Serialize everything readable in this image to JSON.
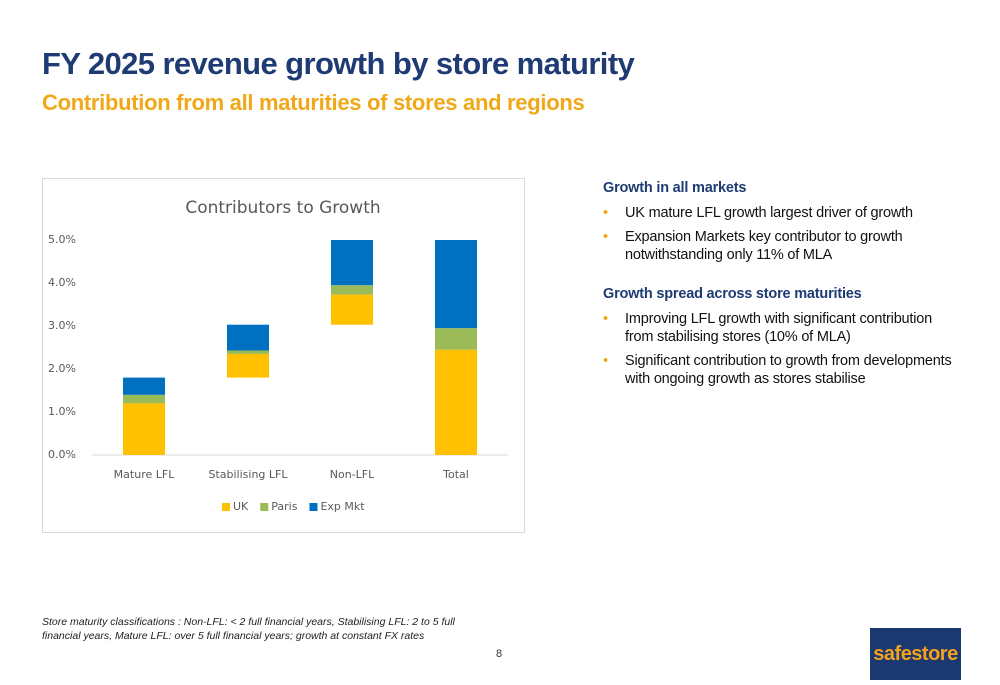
{
  "header": {
    "title": "FY 2025 revenue growth by store maturity",
    "subtitle": "Contribution from all maturities of stores and regions"
  },
  "chart_data": {
    "type": "waterfall",
    "title": "Contributors to Growth",
    "categories": [
      "Mature LFL",
      "Stabilising LFL",
      "Non-LFL",
      "Total"
    ],
    "series": [
      {
        "name": "UK",
        "color": "#ffc000",
        "values": [
          1.2,
          0.55,
          0.7,
          2.45
        ]
      },
      {
        "name": "Paris",
        "color": "#9bbb59",
        "values": [
          0.2,
          0.08,
          0.22,
          0.5
        ]
      },
      {
        "name": "Exp Mkt",
        "color": "#0070c0",
        "values": [
          0.4,
          0.6,
          1.05,
          2.05
        ]
      }
    ],
    "ylim": [
      0,
      5
    ],
    "yticks": [
      {
        "value": 0,
        "label": "0.0%"
      },
      {
        "value": 1,
        "label": "1.0%"
      },
      {
        "value": 2,
        "label": "2.0%"
      },
      {
        "value": 3,
        "label": "3.0%"
      },
      {
        "value": 4,
        "label": "4.0%"
      },
      {
        "value": 5,
        "label": "5.0%"
      }
    ],
    "grid": false,
    "legend": "bottom"
  },
  "bullets": {
    "sections": [
      {
        "heading": "Growth in all markets",
        "items": [
          "UK mature LFL growth largest driver of growth",
          "Expansion Markets key contributor to growth notwithstanding only 11% of MLA"
        ]
      },
      {
        "heading": "Growth spread across store maturities",
        "items": [
          "Improving LFL growth with significant contribution from stabilising stores (10% of MLA)",
          "Significant contribution to growth from developments with ongoing growth as stores stabilise"
        ]
      }
    ]
  },
  "footnote": "Store maturity classifications : Non-LFL: < 2 full financial years, Stabilising LFL: 2 to 5 full financial years, Mature LFL: over 5 full financial years; growth at constant FX rates",
  "page_number": 8,
  "logo": "safestore"
}
